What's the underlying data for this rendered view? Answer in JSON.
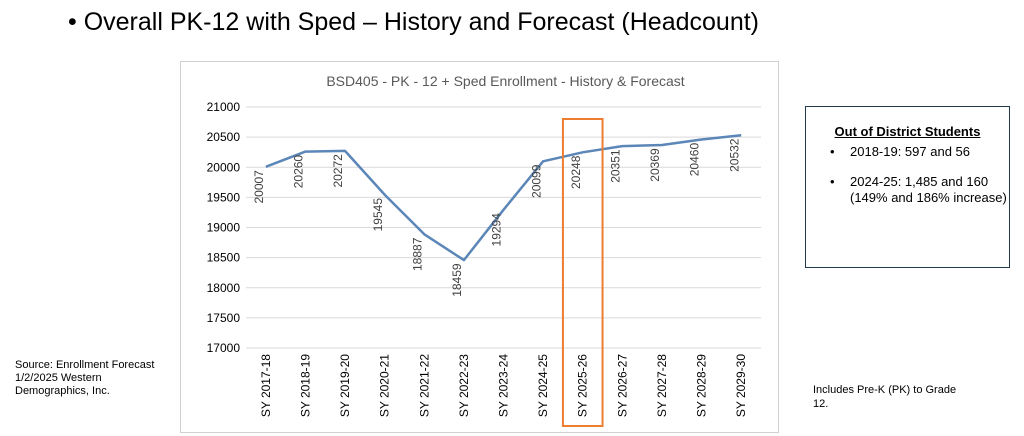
{
  "slide": {
    "title": "• Overall PK-12 with Sped – History and Forecast (Headcount)",
    "source_note": "Source: Enrollment Forecast 1/2/2025 Western Demographics, Inc.",
    "footnote": "Includes Pre-K (PK) to Grade 12."
  },
  "callout": {
    "title": "Out of District Students",
    "items": [
      "2018-19: 597 and 56",
      "2024-25: 1,485 and 160 (149% and 186% increase)"
    ]
  },
  "chart_data": {
    "type": "line",
    "title": "BSD405 - PK - 12 + Sped Enrollment - History & Forecast",
    "categories": [
      "SY 2017-18",
      "SY 2018-19",
      "SY 2019-20",
      "SY 2020-21",
      "SY 2021-22",
      "SY 2022-23",
      "SY 2023-24",
      "SY 2024-25",
      "SY 2025-26",
      "SY 2026-27",
      "SY 2027-28",
      "SY 2028-29",
      "SY 2029-30"
    ],
    "series": [
      {
        "values": [
          20007,
          20260,
          20272,
          19545,
          18887,
          18459,
          19294,
          20099,
          20248,
          20351,
          20369,
          20460,
          20532
        ],
        "data_labels": [
          "20007",
          "20260",
          "20272",
          "19545",
          "18887",
          "18459",
          "19294",
          "20099",
          "20248",
          "20351",
          "20369",
          "20460",
          "20532"
        ]
      }
    ],
    "ylim": [
      17000,
      21000
    ],
    "yticks": [
      17000,
      17500,
      18000,
      18500,
      19000,
      19500,
      20000,
      20500,
      21000
    ],
    "gridlines": true,
    "line_color": "#5b86b8",
    "highlight": {
      "category": "SY 2025-26",
      "color": "#ed7d31"
    }
  }
}
